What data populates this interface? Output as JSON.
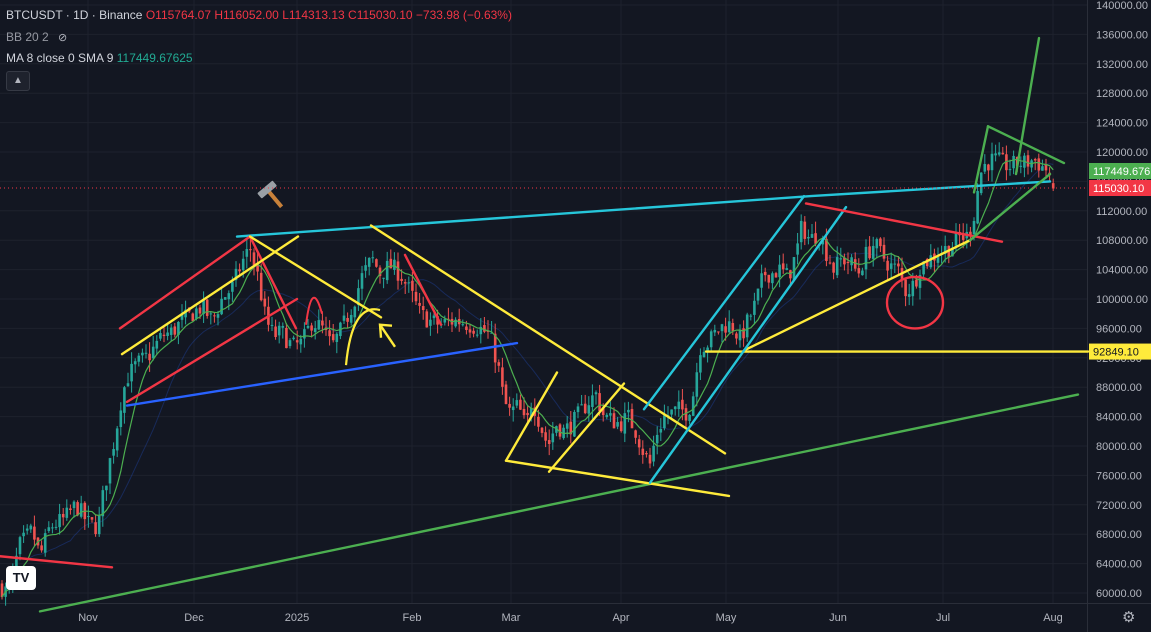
{
  "legend": {
    "symbol": "BTCUSDT · 1D · Binance",
    "open": "O115764.07",
    "high": "H116052.00",
    "low": "L114313.13",
    "close": "C115030.10",
    "change": "−733.98 (−0.63%)",
    "bb_label": "BB 20 2",
    "ma_label": "MA 8 close 0 SMA 9",
    "ma_value": "117449.67625"
  },
  "icons": {
    "collapse": "chevron-up-icon",
    "eye": "eye-off-icon",
    "logo": "tradingview-logo",
    "settings": "gear-icon",
    "hammer": "hammer-icon"
  },
  "chart_data": {
    "type": "candlestick",
    "symbol": "BTCUSDT",
    "interval": "1D",
    "exchange": "Binance",
    "ylim": [
      58000,
      140000
    ],
    "y_ticks": [
      60000,
      64000,
      68000,
      72000,
      76000,
      80000,
      84000,
      88000,
      92000,
      96000,
      100000,
      104000,
      108000,
      112000,
      116000,
      120000,
      124000,
      128000,
      132000,
      136000,
      140000
    ],
    "x_tick_labels": [
      "Nov",
      "Dec",
      "2025",
      "Feb",
      "Mar",
      "Apr",
      "May",
      "Jun",
      "Jul",
      "Aug"
    ],
    "price_labels": [
      {
        "name": "ma",
        "value": "117449.676",
        "color": "#4caf50"
      },
      {
        "name": "last",
        "value": "115030.10",
        "color": "#f23645"
      },
      {
        "name": "hline",
        "value": "92849.10",
        "color": "#ffeb3b"
      }
    ],
    "anchors": [
      [
        0,
        61000
      ],
      [
        8,
        60000
      ],
      [
        20,
        66500
      ],
      [
        32,
        68500
      ],
      [
        40,
        65000
      ],
      [
        50,
        69000
      ],
      [
        64,
        70000
      ],
      [
        76,
        72000
      ],
      [
        88,
        69500
      ],
      [
        98,
        69000
      ],
      [
        104,
        74000
      ],
      [
        110,
        78000
      ],
      [
        116,
        82000
      ],
      [
        122,
        87000
      ],
      [
        128,
        89500
      ],
      [
        136,
        91000
      ],
      [
        150,
        92500
      ],
      [
        162,
        95000
      ],
      [
        172,
        95500
      ],
      [
        182,
        97000
      ],
      [
        192,
        98000
      ],
      [
        202,
        99000
      ],
      [
        212,
        97000
      ],
      [
        222,
        100000
      ],
      [
        232,
        101500
      ],
      [
        242,
        105000
      ],
      [
        250,
        107000
      ],
      [
        258,
        103000
      ],
      [
        266,
        97000
      ],
      [
        274,
        95000
      ],
      [
        282,
        95500
      ],
      [
        292,
        93500
      ],
      [
        302,
        94000
      ],
      [
        312,
        97000
      ],
      [
        322,
        96000
      ],
      [
        332,
        93500
      ],
      [
        342,
        96000
      ],
      [
        352,
        99000
      ],
      [
        362,
        103000
      ],
      [
        372,
        105500
      ],
      [
        380,
        103500
      ],
      [
        390,
        104500
      ],
      [
        400,
        103500
      ],
      [
        410,
        101000
      ],
      [
        420,
        98000
      ],
      [
        430,
        97000
      ],
      [
        440,
        96500
      ],
      [
        450,
        97000
      ],
      [
        460,
        97000
      ],
      [
        470,
        96500
      ],
      [
        480,
        96000
      ],
      [
        490,
        95000
      ],
      [
        498,
        91000
      ],
      [
        504,
        86000
      ],
      [
        510,
        84500
      ],
      [
        518,
        85500
      ],
      [
        526,
        82500
      ],
      [
        532,
        86500
      ],
      [
        540,
        83000
      ],
      [
        548,
        80000
      ],
      [
        556,
        83000
      ],
      [
        564,
        82000
      ],
      [
        572,
        83000
      ],
      [
        580,
        84500
      ],
      [
        588,
        86000
      ],
      [
        596,
        87000
      ],
      [
        604,
        84000
      ],
      [
        612,
        83500
      ],
      [
        620,
        83000
      ],
      [
        628,
        84000
      ],
      [
        636,
        82000
      ],
      [
        644,
        79000
      ],
      [
        650,
        77500
      ],
      [
        656,
        81500
      ],
      [
        664,
        84000
      ],
      [
        672,
        84500
      ],
      [
        680,
        85000
      ],
      [
        688,
        84500
      ],
      [
        694,
        87500
      ],
      [
        700,
        93500
      ],
      [
        708,
        94000
      ],
      [
        716,
        95500
      ],
      [
        724,
        96500
      ],
      [
        732,
        96500
      ],
      [
        740,
        94500
      ],
      [
        748,
        97000
      ],
      [
        756,
        99500
      ],
      [
        764,
        103500
      ],
      [
        772,
        103500
      ],
      [
        780,
        104000
      ],
      [
        788,
        103000
      ],
      [
        796,
        106000
      ],
      [
        802,
        110000
      ],
      [
        810,
        108000
      ],
      [
        818,
        109000
      ],
      [
        826,
        106500
      ],
      [
        834,
        104000
      ],
      [
        842,
        105500
      ],
      [
        850,
        105000
      ],
      [
        858,
        103500
      ],
      [
        866,
        106000
      ],
      [
        874,
        107500
      ],
      [
        882,
        106000
      ],
      [
        890,
        104500
      ],
      [
        898,
        104000
      ],
      [
        906,
        101000
      ],
      [
        914,
        102000
      ],
      [
        920,
        104500
      ],
      [
        930,
        105500
      ],
      [
        940,
        106500
      ],
      [
        950,
        107000
      ],
      [
        960,
        108500
      ],
      [
        968,
        108500
      ],
      [
        974,
        111500
      ],
      [
        980,
        117000
      ],
      [
        986,
        118500
      ],
      [
        994,
        119000
      ],
      [
        1002,
        118500
      ],
      [
        1010,
        118000
      ],
      [
        1018,
        118500
      ],
      [
        1026,
        118500
      ],
      [
        1034,
        119000
      ],
      [
        1042,
        118000
      ],
      [
        1048,
        117500
      ],
      [
        1054,
        115030
      ]
    ],
    "drawings": [
      {
        "name": "long-green-support",
        "color": "#4caf50",
        "points": [
          [
            40,
            57500
          ],
          [
            1078,
            87000
          ]
        ]
      },
      {
        "name": "left-red-line",
        "color": "#f23645",
        "points": [
          [
            0,
            65000
          ],
          [
            112,
            63500
          ]
        ]
      },
      {
        "name": "teal-resistance",
        "color": "#26c6da",
        "points": [
          [
            237,
            108500
          ],
          [
            811,
            114000
          ],
          [
            1050,
            116000
          ]
        ]
      },
      {
        "name": "blue-support",
        "color": "#2962ff",
        "points": [
          [
            127,
            85500
          ],
          [
            517,
            94000
          ]
        ]
      },
      {
        "name": "red-channel-top",
        "color": "#f23645",
        "points": [
          [
            120,
            96000
          ],
          [
            250,
            108500
          ]
        ]
      },
      {
        "name": "red-channel-bottom",
        "color": "#f23645",
        "points": [
          [
            127,
            86000
          ],
          [
            297,
            100000
          ]
        ]
      },
      {
        "name": "red-down-1",
        "color": "#f23645",
        "points": [
          [
            250,
            108500
          ],
          [
            296,
            96000
          ]
        ]
      },
      {
        "name": "red-down-2",
        "color": "#f23645",
        "points": [
          [
            405,
            106000
          ],
          [
            441,
            96500
          ]
        ]
      },
      {
        "name": "yellow-up-1",
        "color": "#ffeb3b",
        "points": [
          [
            122,
            92500
          ],
          [
            298,
            108500
          ]
        ]
      },
      {
        "name": "yellow-down-1",
        "color": "#ffeb3b",
        "points": [
          [
            250,
            108500
          ],
          [
            381,
            97500
          ]
        ]
      },
      {
        "name": "yellow-triangle-top",
        "color": "#ffeb3b",
        "points": [
          [
            371,
            110000
          ],
          [
            725,
            79000
          ]
        ]
      },
      {
        "name": "yellow-triangle-bottom",
        "color": "#ffeb3b",
        "points": [
          [
            506,
            78000
          ],
          [
            729,
            73200
          ]
        ]
      },
      {
        "name": "yellow-up-2",
        "color": "#ffeb3b",
        "points": [
          [
            506,
            78000
          ],
          [
            557,
            90000
          ]
        ]
      },
      {
        "name": "yellow-up-3",
        "color": "#ffeb3b",
        "points": [
          [
            549,
            76500
          ],
          [
            624,
            88500
          ]
        ]
      },
      {
        "name": "yellow-up-4",
        "color": "#ffeb3b",
        "points": [
          [
            744,
            93000
          ],
          [
            970,
            108000
          ]
        ]
      },
      {
        "name": "yellow-hline",
        "color": "#ffeb3b",
        "points": [
          [
            706,
            92849
          ],
          [
            1088,
            92849
          ]
        ]
      },
      {
        "name": "teal-channel-left",
        "color": "#26c6da",
        "points": [
          [
            644,
            85000
          ],
          [
            804,
            114000
          ]
        ]
      },
      {
        "name": "teal-channel-right",
        "color": "#26c6da",
        "points": [
          [
            650,
            75000
          ],
          [
            846,
            112500
          ]
        ]
      },
      {
        "name": "red-descending",
        "color": "#f23645",
        "points": [
          [
            806,
            113000
          ],
          [
            1002,
            107800
          ]
        ]
      },
      {
        "name": "green-spike",
        "color": "#4caf50",
        "points": [
          [
            1016,
            117000
          ],
          [
            1039,
            135500
          ]
        ]
      },
      {
        "name": "green-wedge-top",
        "color": "#4caf50",
        "points": [
          [
            988,
            123500
          ],
          [
            1064,
            118500
          ]
        ]
      },
      {
        "name": "green-wedge-bottom",
        "color": "#4caf50",
        "points": [
          [
            970,
            108000
          ],
          [
            1050,
            117000
          ]
        ]
      },
      {
        "name": "green-wedge-left",
        "color": "#4caf50",
        "points": [
          [
            974,
            114500
          ],
          [
            988,
            123500
          ]
        ]
      }
    ],
    "circles": [
      {
        "name": "red-circle",
        "color": "#f23645",
        "center": [
          915,
          99500
        ],
        "rx_days": 7,
        "ry_value": 3500
      }
    ],
    "arrows": [
      {
        "name": "yellow-arrow",
        "color": "#ffeb3b",
        "from": [
          395,
          93500
        ],
        "to": [
          380,
          96500
        ]
      }
    ]
  }
}
